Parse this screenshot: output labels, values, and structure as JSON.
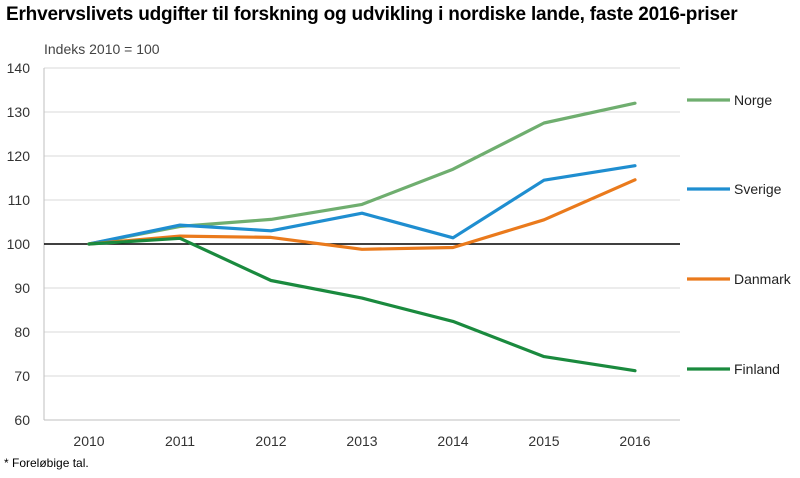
{
  "title": "Erhvervslivets udgifter til forskning og udvikling i nordiske lande, faste 2016-priser",
  "footnote": "* Foreløbige tal.",
  "chart_data": {
    "type": "line",
    "title": "Erhvervslivets udgifter til forskning og udvikling i nordiske lande, faste 2016-priser",
    "unit_label": "Indeks 2010 = 100",
    "xlabel": "",
    "ylabel": "",
    "x": [
      "2010",
      "2011",
      "2012",
      "2013",
      "2014",
      "2015",
      "2016"
    ],
    "ylim": [
      60,
      140
    ],
    "yticks": [
      60,
      70,
      80,
      90,
      100,
      110,
      120,
      130,
      140
    ],
    "reference_line": 100,
    "grid": true,
    "legend_position": "right",
    "series": [
      {
        "name": "Norge",
        "color": "#6fae6f",
        "values": [
          100,
          104,
          105.6,
          109,
          117,
          127.5,
          132
        ]
      },
      {
        "name": "Sverige",
        "color": "#1f8ed0",
        "values": [
          100,
          104.3,
          103,
          107,
          101.4,
          114.5,
          117.8
        ]
      },
      {
        "name": "Danmark",
        "color": "#ea7a1c",
        "values": [
          100,
          101.8,
          101.5,
          98.8,
          99.2,
          105.5,
          114.6
        ]
      },
      {
        "name": "Finland",
        "color": "#1a8a3e",
        "values": [
          100,
          101.3,
          91.7,
          87.7,
          82.4,
          74.4,
          71.2
        ]
      }
    ]
  }
}
